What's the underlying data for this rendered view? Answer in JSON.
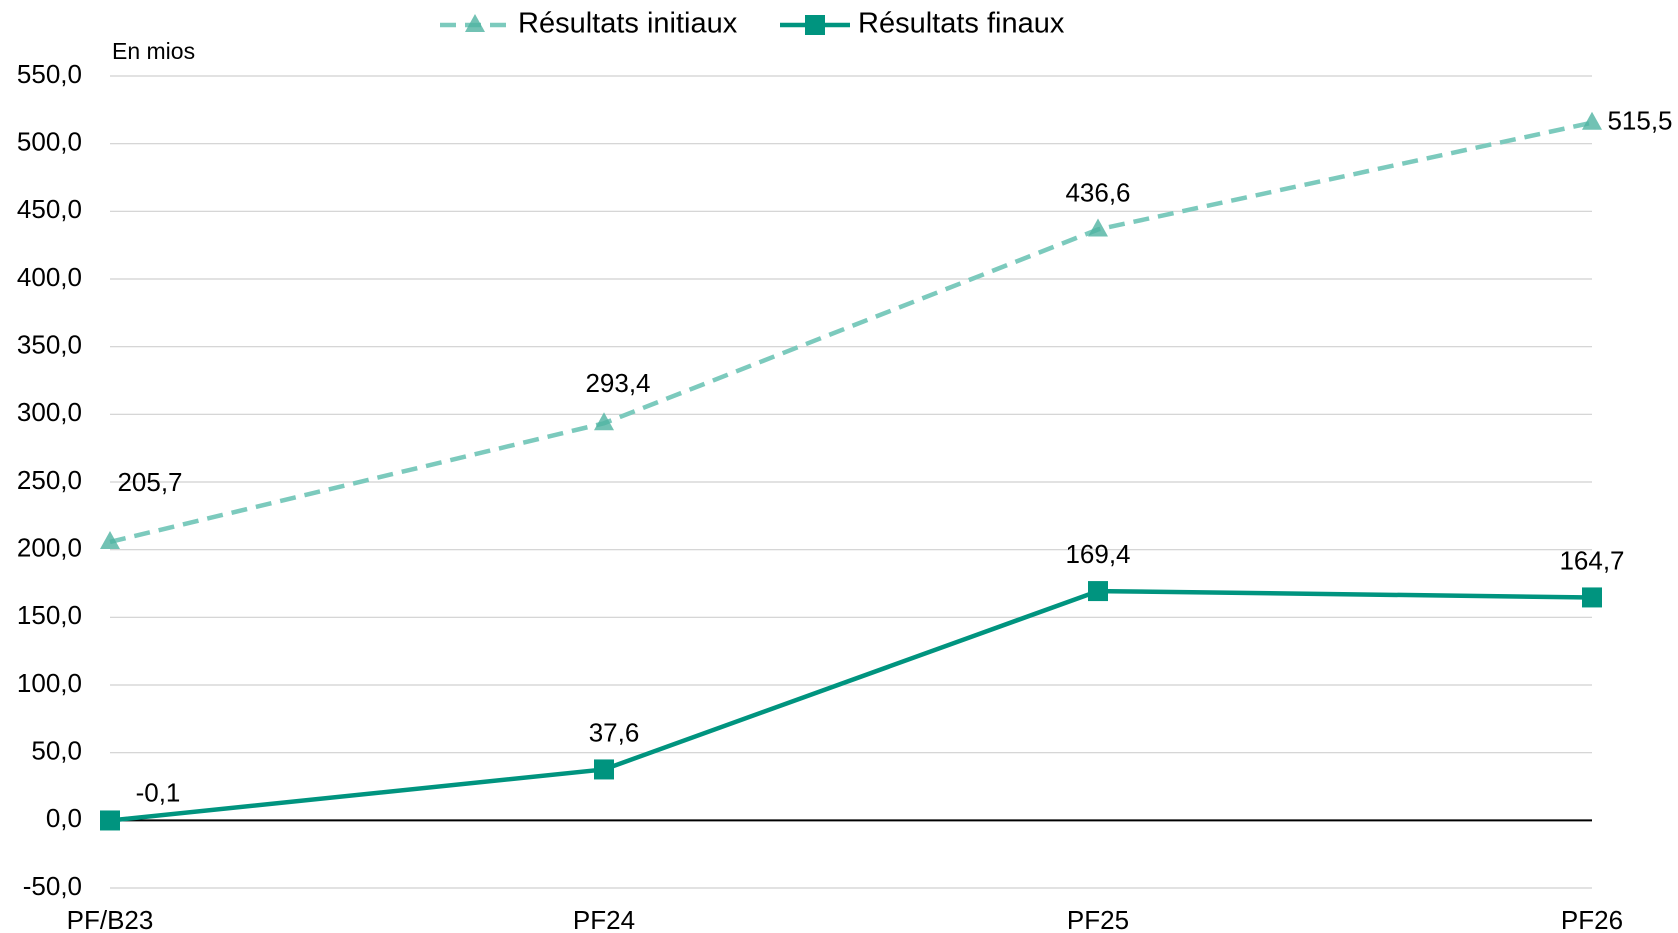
{
  "chart_data": {
    "type": "line",
    "y_unit_label": "En mios",
    "categories": [
      "PF/B23",
      "PF24",
      "PF25",
      "PF26"
    ],
    "series": [
      {
        "name": "Résultats initiaux",
        "color": "#7ccabd",
        "marker_color": "#4fb3a1",
        "dashed": true,
        "marker": "triangle",
        "values": [
          205.7,
          293.4,
          436.6,
          515.5
        ],
        "value_labels": [
          "205,7",
          "293,4",
          "436,6",
          "515,5"
        ]
      },
      {
        "name": "Résultats finaux",
        "color": "#00947f",
        "marker_color": "#00947f",
        "dashed": false,
        "marker": "square",
        "values": [
          -0.1,
          37.6,
          169.4,
          164.7
        ],
        "value_labels": [
          "-0,1",
          "37,6",
          "169,4",
          "164,7"
        ]
      }
    ],
    "ylim": [
      -50,
      550
    ],
    "yticks": [
      {
        "value": -50,
        "label": "-50,0"
      },
      {
        "value": 0,
        "label": "0,0"
      },
      {
        "value": 50,
        "label": "50,0"
      },
      {
        "value": 100,
        "label": "100,0"
      },
      {
        "value": 150,
        "label": "150,0"
      },
      {
        "value": 200,
        "label": "200,0"
      },
      {
        "value": 250,
        "label": "250,0"
      },
      {
        "value": 300,
        "label": "300,0"
      },
      {
        "value": 350,
        "label": "350,0"
      },
      {
        "value": 400,
        "label": "400,0"
      },
      {
        "value": 450,
        "label": "450,0"
      },
      {
        "value": 500,
        "label": "500,0"
      },
      {
        "value": 550,
        "label": "550,0"
      }
    ],
    "grid": true,
    "legend": "top"
  }
}
